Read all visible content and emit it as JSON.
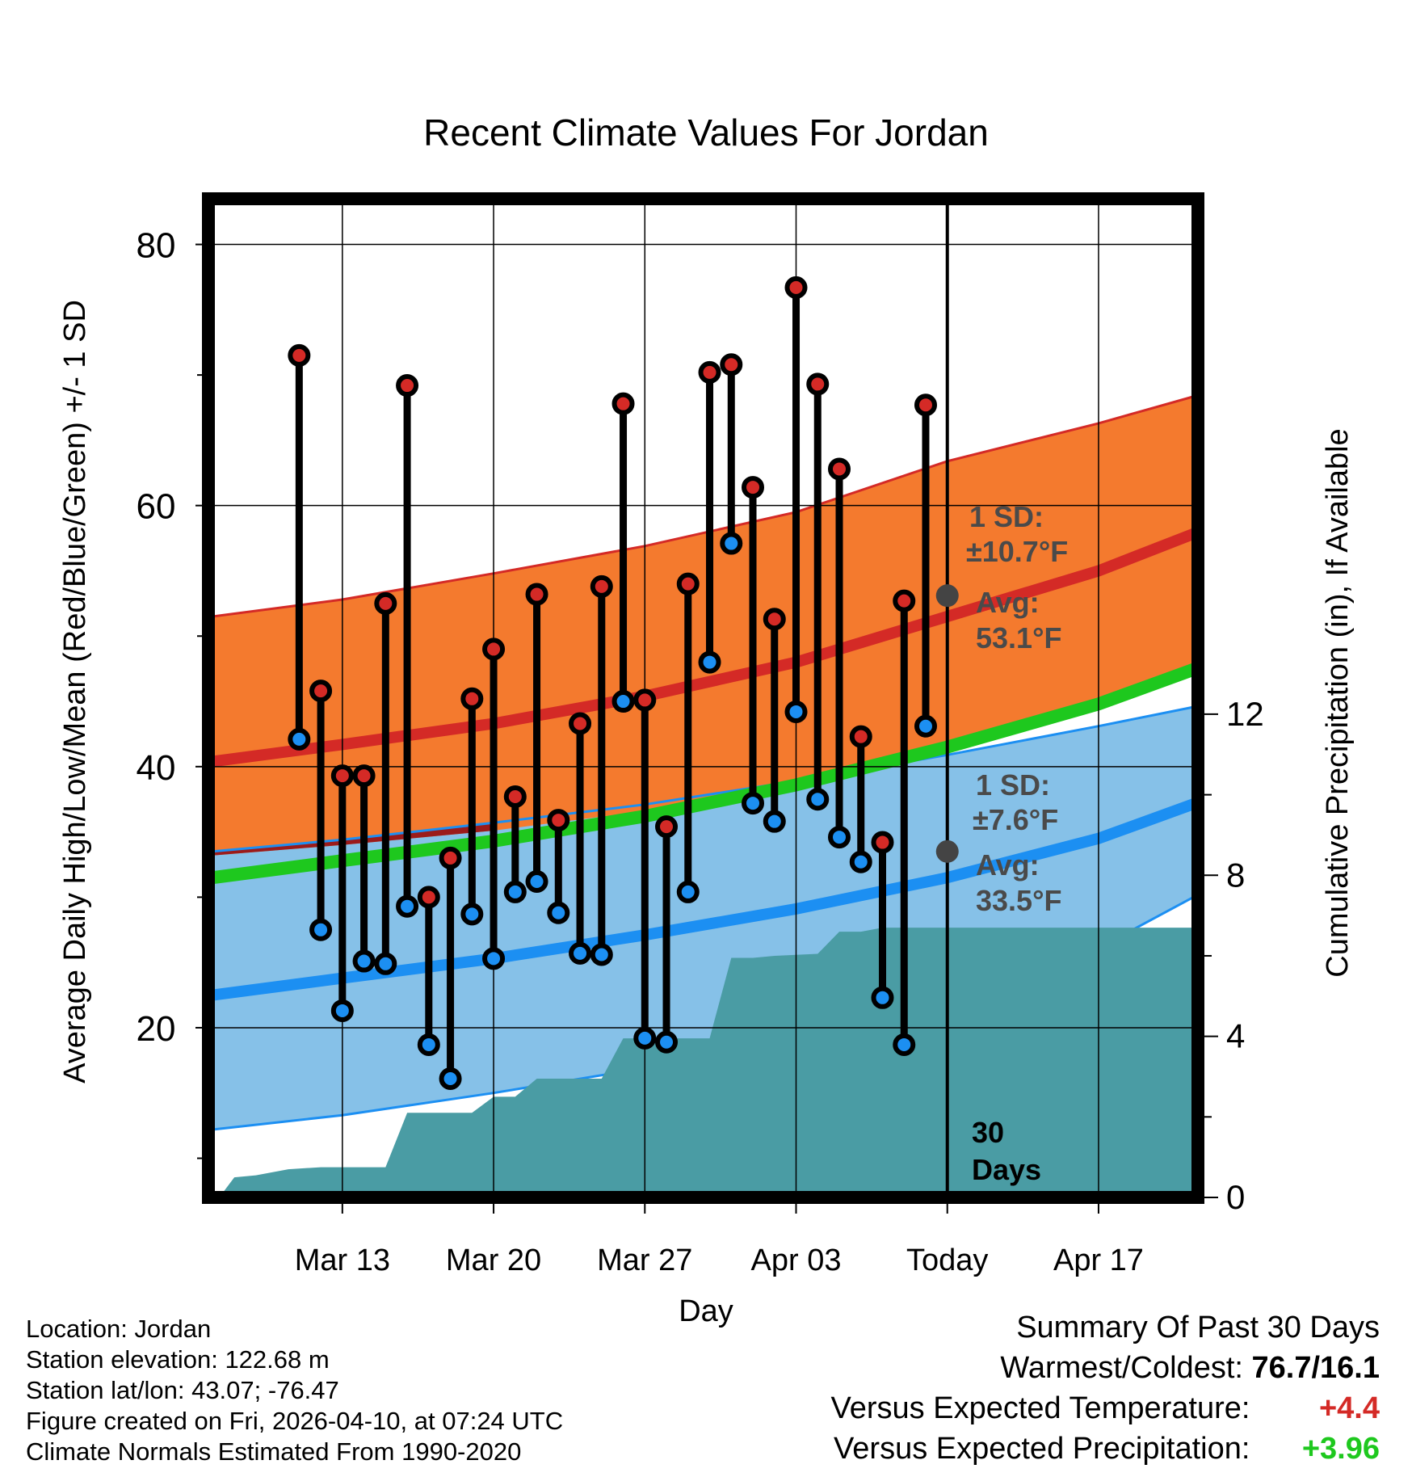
{
  "chart_data": {
    "type": "line",
    "title": "Recent Climate Values For Jordan",
    "xlabel": "Day",
    "ylabel": "Average Daily High/Low/Mean (Red/Blue/Green) +/- 1 SD",
    "y2label": "Cumulative Precipitation (in), If Available",
    "ylim": [
      7,
      83.5
    ],
    "y2lim": [
      0,
      24.8
    ],
    "yticks": [
      20,
      40,
      60,
      80
    ],
    "y2ticks": [
      0,
      4,
      8,
      12
    ],
    "x_day_range": [
      -34.2,
      11.6
    ],
    "xtick_days": [
      -28,
      -21,
      -14,
      -7,
      0,
      7
    ],
    "xtick_labels": [
      "Mar 13",
      "Mar 20",
      "Mar 27",
      "Apr 03",
      "Today",
      "Apr 17"
    ],
    "normals": {
      "high_avg": [
        [
          -34,
          40.4
        ],
        [
          -28,
          41.7
        ],
        [
          -21,
          43.3
        ],
        [
          -14,
          45.4
        ],
        [
          -7,
          48.0
        ],
        [
          0,
          51.5
        ],
        [
          7,
          55.0
        ],
        [
          11.5,
          57.9
        ]
      ],
      "high_upper": [
        [
          -34,
          51.5
        ],
        [
          -28,
          52.8
        ],
        [
          -21,
          54.8
        ],
        [
          -14,
          56.9
        ],
        [
          -7,
          59.5
        ],
        [
          0,
          63.4
        ],
        [
          7,
          66.3
        ],
        [
          11.5,
          68.4
        ]
      ],
      "high_lower": [
        [
          -34,
          33.2
        ],
        [
          -28,
          34.0
        ],
        [
          -21,
          35.1
        ],
        [
          -14,
          36.6
        ],
        [
          -7,
          38.4
        ],
        [
          0,
          41.5
        ],
        [
          7,
          44.5
        ],
        [
          11.5,
          47.0
        ]
      ],
      "low_avg": [
        [
          -34,
          22.5
        ],
        [
          -28,
          23.8
        ],
        [
          -21,
          25.3
        ],
        [
          -14,
          27.1
        ],
        [
          -7,
          29.1
        ],
        [
          0,
          31.5
        ],
        [
          7,
          34.5
        ],
        [
          11.5,
          37.2
        ]
      ],
      "low_upper": [
        [
          -34,
          33.5
        ],
        [
          -28,
          34.4
        ],
        [
          -21,
          35.7
        ],
        [
          -14,
          37.1
        ],
        [
          -7,
          38.9
        ],
        [
          0,
          40.9
        ],
        [
          7,
          43.1
        ],
        [
          11.5,
          44.6
        ]
      ],
      "low_lower": [
        [
          -34,
          12.2
        ],
        [
          -28,
          13.3
        ],
        [
          -21,
          15.0
        ],
        [
          -14,
          16.9
        ],
        [
          -7,
          19.3
        ],
        [
          0,
          22.3
        ],
        [
          7,
          26.1
        ],
        [
          11.5,
          30.1
        ]
      ],
      "mean_avg": [
        [
          -34,
          31.5
        ],
        [
          -28,
          32.8
        ],
        [
          -21,
          34.3
        ],
        [
          -14,
          36.2
        ],
        [
          -7,
          38.6
        ],
        [
          0,
          41.5
        ],
        [
          7,
          44.8
        ],
        [
          11.5,
          47.5
        ]
      ]
    },
    "daily": [
      {
        "day": -30,
        "high": 71.5,
        "low": 42.1
      },
      {
        "day": -29,
        "high": 45.8,
        "low": 27.5
      },
      {
        "day": -28,
        "high": 39.3,
        "low": 21.3
      },
      {
        "day": -27,
        "high": 39.3,
        "low": 25.1
      },
      {
        "day": -26,
        "high": 52.5,
        "low": 24.9
      },
      {
        "day": -25,
        "high": 69.2,
        "low": 29.3
      },
      {
        "day": -24,
        "high": 30.0,
        "low": 18.7
      },
      {
        "day": -23,
        "high": 33.0,
        "low": 16.1
      },
      {
        "day": -22,
        "high": 45.2,
        "low": 28.7
      },
      {
        "day": -21,
        "high": 49.0,
        "low": 25.3
      },
      {
        "day": -20,
        "high": 37.7,
        "low": 30.4
      },
      {
        "day": -19,
        "high": 53.2,
        "low": 31.2
      },
      {
        "day": -18,
        "high": 35.9,
        "low": 28.8
      },
      {
        "day": -17,
        "high": 43.3,
        "low": 25.7
      },
      {
        "day": -16,
        "high": 53.8,
        "low": 25.6
      },
      {
        "day": -15,
        "high": 67.8,
        "low": 45.0
      },
      {
        "day": -14,
        "high": 45.1,
        "low": 19.2
      },
      {
        "day": -13,
        "high": 35.4,
        "low": 18.9
      },
      {
        "day": -12,
        "high": 54.0,
        "low": 30.4
      },
      {
        "day": -11,
        "high": 70.2,
        "low": 48.0
      },
      {
        "day": -10,
        "high": 70.8,
        "low": 57.1
      },
      {
        "day": -9,
        "high": 61.4,
        "low": 37.2
      },
      {
        "day": -8,
        "high": 51.3,
        "low": 35.8
      },
      {
        "day": -7,
        "high": 76.7,
        "low": 44.2
      },
      {
        "day": -6,
        "high": 69.3,
        "low": 37.5
      },
      {
        "day": -5,
        "high": 62.8,
        "low": 34.6
      },
      {
        "day": -4,
        "high": 42.3,
        "low": 32.7
      },
      {
        "day": -3,
        "high": 34.2,
        "low": 22.3
      },
      {
        "day": -2,
        "high": 52.7,
        "low": 18.7
      },
      {
        "day": -1,
        "high": 67.7,
        "low": 43.1
      }
    ],
    "precip_cumulative": [
      [
        -33.7,
        0.0
      ],
      [
        -33.0,
        0.5
      ],
      [
        -32.0,
        0.55
      ],
      [
        -30.5,
        0.7
      ],
      [
        -29.0,
        0.75
      ],
      [
        -26.0,
        0.75
      ],
      [
        -25.0,
        2.1
      ],
      [
        -23.0,
        2.1
      ],
      [
        -22.0,
        2.1
      ],
      [
        -21.0,
        2.5
      ],
      [
        -20.0,
        2.5
      ],
      [
        -19.0,
        2.95
      ],
      [
        -16.0,
        2.95
      ],
      [
        -15.0,
        3.95
      ],
      [
        -13.0,
        3.95
      ],
      [
        -12.0,
        3.95
      ],
      [
        -11.0,
        3.95
      ],
      [
        -10.0,
        5.95
      ],
      [
        -9.0,
        5.95
      ],
      [
        -8.0,
        6.0
      ],
      [
        -6.0,
        6.05
      ],
      [
        -5.0,
        6.6
      ],
      [
        -4.0,
        6.6
      ],
      [
        -3.0,
        6.7
      ],
      [
        11.5,
        6.7
      ]
    ],
    "annotations": {
      "high_sd": "1 SD:",
      "high_sd_val": "±10.7°F",
      "high_avg_lbl": "Avg:",
      "high_avg_val": "53.1°F",
      "high_today": 53.1,
      "low_sd": "1 SD:",
      "low_sd_val": "±7.6°F",
      "low_avg_lbl": "Avg:",
      "low_avg_val": "33.5°F",
      "low_today": 33.5,
      "window_num": "30",
      "window_txt": "Days"
    },
    "colors": {
      "high_band": "#f47a2e",
      "high_line": "#d42a26",
      "low_band": "#86c1e8",
      "low_line": "#1c8ff2",
      "low_band_edge": "#1c8ff2",
      "mean_line": "#1ec81e",
      "precip": "#4a9ca4",
      "overlap": "#9b1b1b",
      "high_dot": "#d42a26",
      "low_dot": "#1c8ff2",
      "today_dot": "#444444",
      "anno_text": "#4a4a4a"
    }
  },
  "footer": {
    "location": "Location: Jordan",
    "elevation": "Station elevation: 122.68 m",
    "latlon": "Station lat/lon: 43.07; -76.47",
    "created": "Figure created on Fri, 2026-04-10, at 07:24 UTC",
    "normals": "Climate Normals Estimated From 1990-2020"
  },
  "summary": {
    "title": "Summary Of Past 30 Days",
    "warm_cold_label": "Warmest/Coldest:",
    "warm_cold_value": "76.7/16.1",
    "temp_label": "Versus Expected Temperature:",
    "temp_value": "+4.4",
    "temp_color": "#d42a26",
    "precip_label": "Versus Expected Precipitation:",
    "precip_value": "+3.96",
    "precip_color": "#1ec81e"
  }
}
